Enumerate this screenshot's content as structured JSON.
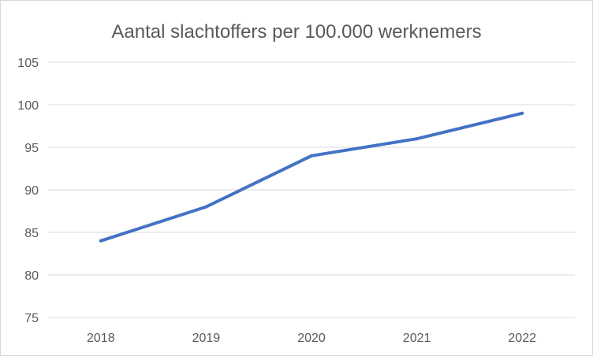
{
  "chart_data": {
    "type": "line",
    "title": "Aantal slachtoffers per 100.000 werknemers",
    "xlabel": "",
    "ylabel": "",
    "categories": [
      "2018",
      "2019",
      "2020",
      "2021",
      "2022"
    ],
    "series": [
      {
        "values": [
          84,
          88,
          94,
          96,
          99
        ],
        "color": "#4472c4"
      }
    ],
    "ylim": [
      75,
      105
    ],
    "yticks": [
      75,
      80,
      85,
      90,
      95,
      100,
      105
    ],
    "grid": true,
    "legend": "none"
  }
}
